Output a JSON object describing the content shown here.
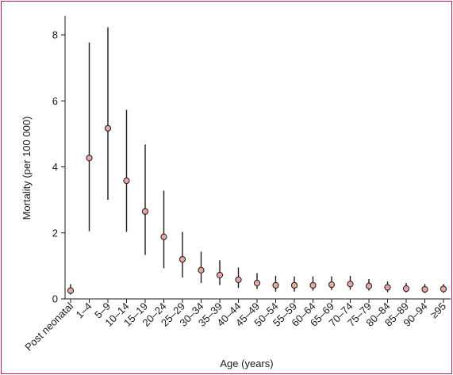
{
  "chart_data": {
    "type": "scatter",
    "xlabel": "Age (years)",
    "ylabel": "Mortality (per 100 000)",
    "ylim": [
      0,
      8.3
    ],
    "yticks": [
      0,
      2,
      4,
      6,
      8
    ],
    "categories": [
      "Post neonatal",
      "1–4",
      "5–9",
      "10–14",
      "15–19",
      "20–24",
      "25–29",
      "30–34",
      "35–39",
      "40–44",
      "45–49",
      "50–54",
      "55–59",
      "60–64",
      "65–69",
      "70–74",
      "75–79",
      "80–84",
      "85–89",
      "90–94",
      "≥95"
    ],
    "series": [
      {
        "values": [
          0.25,
          4.27,
          5.17,
          3.58,
          2.65,
          1.88,
          1.2,
          0.87,
          0.72,
          0.58,
          0.48,
          0.41,
          0.41,
          0.41,
          0.43,
          0.45,
          0.39,
          0.35,
          0.31,
          0.29,
          0.3
        ],
        "lower": [
          0.13,
          2.05,
          3.0,
          2.03,
          1.33,
          0.93,
          0.65,
          0.48,
          0.42,
          0.33,
          0.3,
          0.22,
          0.22,
          0.25,
          0.27,
          0.28,
          0.25,
          0.2,
          0.2,
          0.18,
          0.18
        ],
        "upper": [
          0.45,
          7.77,
          8.23,
          5.73,
          4.68,
          3.28,
          2.03,
          1.43,
          1.17,
          0.95,
          0.78,
          0.7,
          0.68,
          0.68,
          0.68,
          0.7,
          0.6,
          0.53,
          0.48,
          0.45,
          0.45
        ]
      }
    ],
    "marker_fill": "#e8a7a2",
    "marker_stroke": "#1a1a1a",
    "frame_color": "#c2185b",
    "grid": false
  }
}
